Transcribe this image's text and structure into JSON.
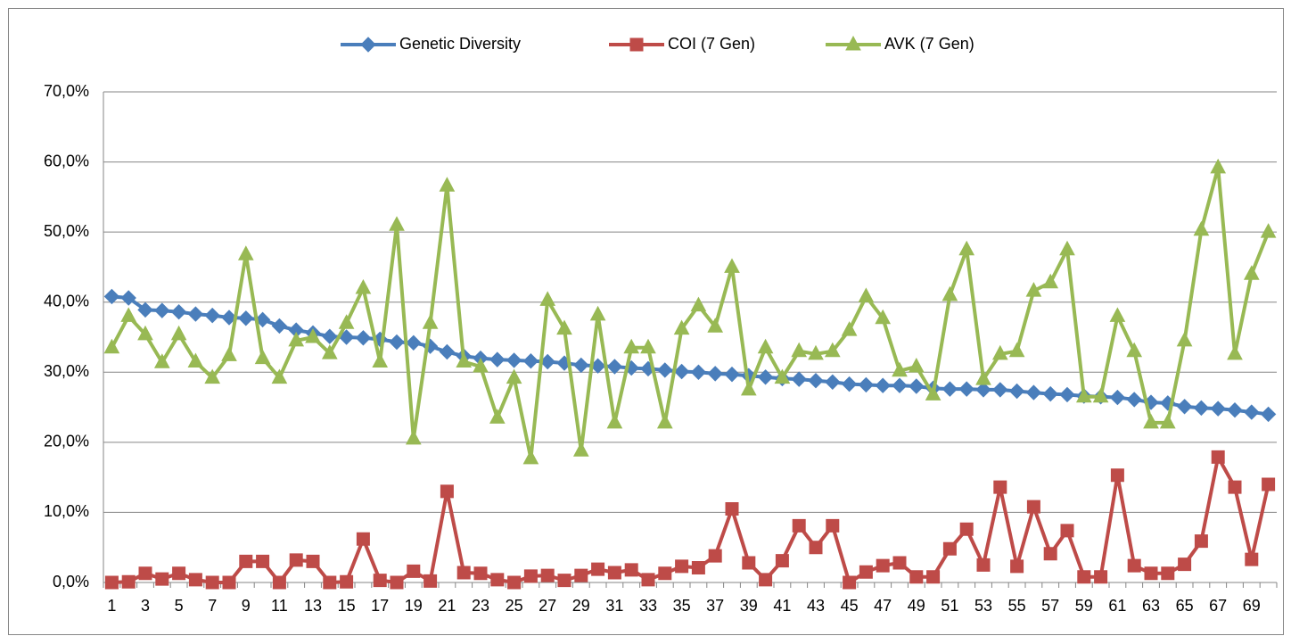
{
  "chart_data": {
    "type": "line",
    "legend": "top",
    "grid": true,
    "categories": [
      1,
      null,
      3,
      null,
      5,
      null,
      7,
      null,
      9,
      null,
      11,
      null,
      13,
      null,
      15,
      null,
      17,
      null,
      19,
      null,
      21,
      null,
      23,
      null,
      25,
      null,
      27,
      null,
      29,
      null,
      31,
      null,
      33,
      null,
      35,
      null,
      37,
      null,
      39,
      null,
      41,
      null,
      43,
      null,
      45,
      null,
      47,
      null,
      49,
      null,
      51,
      null,
      53,
      null,
      55,
      null,
      57,
      null,
      59,
      null,
      61,
      null,
      63,
      null,
      65,
      null,
      67,
      null,
      69,
      null
    ],
    "ylim": [
      0,
      70
    ],
    "yticks": [
      {
        "value": 0,
        "label": "0,0%"
      },
      {
        "value": 10,
        "label": "10,0%"
      },
      {
        "value": 20,
        "label": "20,0%"
      },
      {
        "value": 30,
        "label": "30,0%"
      },
      {
        "value": 40,
        "label": "40,0%"
      },
      {
        "value": 50,
        "label": "50,0%"
      },
      {
        "value": 60,
        "label": "60,0%"
      },
      {
        "value": 70,
        "label": "70,0%"
      }
    ],
    "series": [
      {
        "name": "Genetic Diversity",
        "color": "#4a7ebb",
        "marker": "diamond",
        "values": [
          40.8,
          40.6,
          38.9,
          38.8,
          38.6,
          38.3,
          38.1,
          37.8,
          37.7,
          37.5,
          36.6,
          36.0,
          35.6,
          35.1,
          35.0,
          34.9,
          34.7,
          34.3,
          34.2,
          33.7,
          32.9,
          32.3,
          32.0,
          31.8,
          31.7,
          31.6,
          31.5,
          31.3,
          31.0,
          30.9,
          30.8,
          30.6,
          30.5,
          30.3,
          30.1,
          30.0,
          29.8,
          29.7,
          29.5,
          29.3,
          29.1,
          29.0,
          28.8,
          28.6,
          28.3,
          28.2,
          28.1,
          28.1,
          28.0,
          27.7,
          27.6,
          27.6,
          27.5,
          27.5,
          27.3,
          27.1,
          26.9,
          26.8,
          26.6,
          26.5,
          26.4,
          26.1,
          25.7,
          25.6,
          25.1,
          24.9,
          24.8,
          24.6,
          24.3,
          24.0
        ]
      },
      {
        "name": "COI (7 Gen)",
        "color": "#be4b48",
        "marker": "square",
        "values": [
          0,
          0.1,
          1.3,
          0.5,
          1.3,
          0.4,
          0,
          0,
          3.0,
          3.0,
          0,
          3.2,
          3.0,
          0,
          0.1,
          6.2,
          0.3,
          0,
          1.6,
          0.2,
          13.0,
          1.4,
          1.3,
          0.4,
          0,
          0.9,
          1.0,
          0.3,
          1.0,
          1.9,
          1.4,
          1.8,
          0.4,
          1.3,
          2.3,
          2.1,
          3.8,
          10.5,
          2.8,
          0.4,
          3.1,
          8.1,
          5.0,
          8.1,
          0,
          1.5,
          2.4,
          2.8,
          0.8,
          0.8,
          4.8,
          7.6,
          2.5,
          13.6,
          2.3,
          10.8,
          4.1,
          7.4,
          0.8,
          0.8,
          15.3,
          2.4,
          1.3,
          1.3,
          2.6,
          5.9,
          17.9,
          13.6,
          3.3,
          14.0
        ]
      },
      {
        "name": "AVK (7 Gen)",
        "color": "#98b954",
        "marker": "triangle",
        "values": [
          33.5,
          38.0,
          35.4,
          31.4,
          35.4,
          31.5,
          29.2,
          32.4,
          46.8,
          32.0,
          29.2,
          34.5,
          35.0,
          32.7,
          37.0,
          42.0,
          31.5,
          51.0,
          20.5,
          37.0,
          56.6,
          31.5,
          30.8,
          23.5,
          29.2,
          17.7,
          40.3,
          36.2,
          18.8,
          38.2,
          22.8,
          33.5,
          33.5,
          22.8,
          36.2,
          39.5,
          36.5,
          45.0,
          27.5,
          33.5,
          29.2,
          33.0,
          32.6,
          33.0,
          36.0,
          40.8,
          37.7,
          30.2,
          30.8,
          26.8,
          41.0,
          47.5,
          29.0,
          32.6,
          33.0,
          41.6,
          42.8,
          47.5,
          26.5,
          26.5,
          38.0,
          33.0,
          22.8,
          22.8,
          34.5,
          50.3,
          59.2,
          32.6,
          44.0,
          50.0
        ]
      }
    ]
  }
}
